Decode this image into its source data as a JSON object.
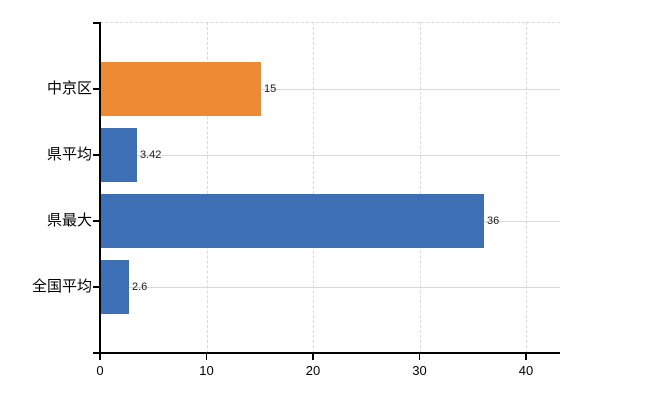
{
  "chart_data": {
    "type": "bar",
    "orientation": "horizontal",
    "title": "",
    "xlabel": "",
    "ylabel": "",
    "categories": [
      "中京区",
      "県平均",
      "県最大",
      "全国平均"
    ],
    "values": [
      15,
      3.42,
      36,
      2.6
    ],
    "value_labels": [
      "15",
      "3.42",
      "36",
      "2.6"
    ],
    "bar_colors": [
      "#ED8A33",
      "#3D6FB5",
      "#3D6FB5",
      "#3D6FB5"
    ],
    "x_axis": {
      "tick_labels": [
        "0",
        "10",
        "20",
        "30",
        "40"
      ],
      "tick_values": [
        0,
        10,
        20,
        30,
        40
      ],
      "range": [
        0,
        43.2
      ]
    },
    "grid": {
      "vertical": "dashed",
      "horizontal": "solid",
      "top_border": "dashed"
    },
    "legend": "none",
    "colors": {
      "background": "#ffffff",
      "gridline": "#d9d9d9",
      "axis": "#000000",
      "text": "#000000",
      "orange": "#ED8A33",
      "blue": "#3D6FB5"
    }
  }
}
